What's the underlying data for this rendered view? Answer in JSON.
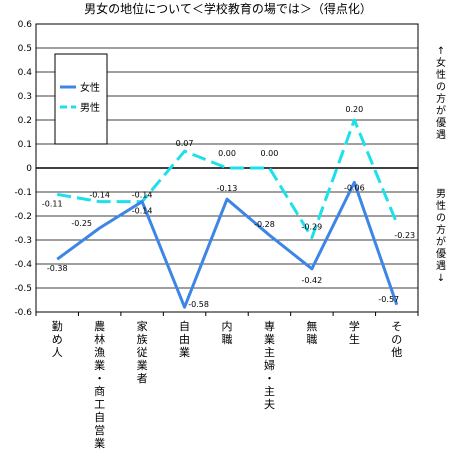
{
  "chart_data": {
    "type": "line",
    "title": "男女の地位について＜学校教育の場では＞（得点化）",
    "categories": [
      "勤め人",
      "農林漁業・商工自営業",
      "家族従業者",
      "自由業",
      "内職",
      "専業主婦・主夫",
      "無職",
      "学生",
      "その他"
    ],
    "series": [
      {
        "name": "女性",
        "color": "#3d85e6",
        "dash": "solid",
        "values": [
          -0.38,
          -0.25,
          -0.14,
          -0.58,
          -0.13,
          -0.28,
          -0.42,
          -0.06,
          -0.57
        ]
      },
      {
        "name": "男性",
        "color": "#1ee0ea",
        "dash": "dashed",
        "values": [
          -0.11,
          -0.14,
          -0.14,
          0.07,
          0.0,
          0.0,
          -0.29,
          0.2,
          -0.23
        ]
      }
    ],
    "data_labels": {
      "女性": [
        "-0.38",
        "-0.25",
        "-0.14",
        "-0.58",
        "-0.13",
        "-0.28",
        "-0.42",
        "-0.06",
        "-0.57"
      ],
      "男性": [
        "-0.11",
        "-0.14",
        "-0.14",
        "0.07",
        "0.00",
        "0.00",
        "-0.29",
        "0.20",
        "-0.23"
      ]
    },
    "ylim": [
      -0.6,
      0.6
    ],
    "yticks": [
      "0.6",
      "0.5",
      "0.4",
      "0.3",
      "0.2",
      "0.1",
      "0",
      "-0.1",
      "-0.2",
      "-0.3",
      "-0.4",
      "-0.5",
      "-0.6"
    ],
    "ytick_values": [
      0.6,
      0.5,
      0.4,
      0.3,
      0.2,
      0.1,
      0,
      -0.1,
      -0.2,
      -0.3,
      -0.4,
      -0.5,
      -0.6
    ],
    "right_label_top": "↑女性の方が優遇",
    "right_label_bottom": "男性の方が優遇↓",
    "legend_placement": "top-left",
    "grid": true
  }
}
